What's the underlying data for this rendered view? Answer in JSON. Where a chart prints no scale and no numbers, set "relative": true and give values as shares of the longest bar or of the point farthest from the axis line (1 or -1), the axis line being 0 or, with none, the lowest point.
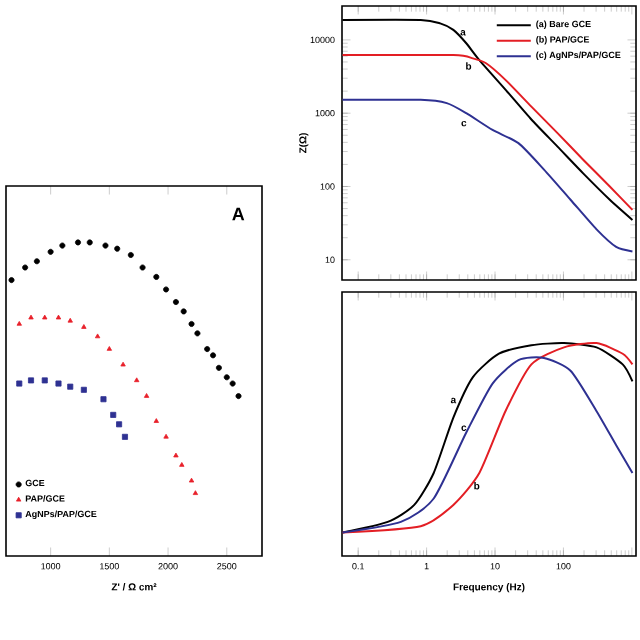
{
  "chart_data": [
    {
      "type": "scatter",
      "relative": true,
      "xlabel": "Z' / Ω cm²",
      "xlim": [
        620,
        2800
      ],
      "xticks": [
        1000,
        1500,
        2000,
        2500
      ],
      "legend": "bottom left",
      "annotations": [
        "A"
      ],
      "series": [
        {
          "name": "GCE",
          "color": "#000000",
          "marker": "circle",
          "x": [
            667,
            783,
            883,
            1000,
            1100,
            1233,
            1333,
            1467,
            1567,
            1683,
            1783,
            1900,
            1983,
            2067,
            2133,
            2200,
            2250,
            2333,
            2383,
            2433,
            2500,
            2550,
            2600
          ],
          "values": [
            0.88,
            0.92,
            0.94,
            0.97,
            0.99,
            1.0,
            1.0,
            0.99,
            0.98,
            0.96,
            0.92,
            0.89,
            0.85,
            0.81,
            0.78,
            0.74,
            0.71,
            0.66,
            0.64,
            0.6,
            0.57,
            0.55,
            0.51
          ]
        },
        {
          "name": "PAP/GCE",
          "color": "#e8202a",
          "marker": "triangle",
          "x": [
            733,
            833,
            950,
            1067,
            1167,
            1283,
            1400,
            1500,
            1617,
            1733,
            1817,
            1900,
            1983,
            2067,
            2117,
            2200,
            2233
          ],
          "values": [
            0.74,
            0.76,
            0.76,
            0.76,
            0.75,
            0.73,
            0.7,
            0.66,
            0.61,
            0.56,
            0.51,
            0.43,
            0.38,
            0.32,
            0.29,
            0.24,
            0.2
          ]
        },
        {
          "name": "AgNPs/PAP/GCE",
          "color": "#2e3192",
          "marker": "square",
          "x": [
            733,
            833,
            950,
            1067,
            1167,
            1283,
            1450,
            1533,
            1583,
            1633
          ],
          "values": [
            0.55,
            0.56,
            0.56,
            0.55,
            0.54,
            0.53,
            0.5,
            0.45,
            0.42,
            0.38
          ]
        }
      ]
    },
    {
      "type": "line",
      "ylabel": "Z(Ω)",
      "log": "xy",
      "xlim": [
        0.058,
        1150
      ],
      "ylim": [
        5.3,
        29000
      ],
      "xticks": [
        0.1,
        1,
        10,
        100,
        {
          "value": 1000,
          "label": null
        }
      ],
      "yticks": [
        10,
        100,
        1000,
        10000
      ],
      "tick_labels": "y",
      "legend": "top right",
      "annotations": [
        {
          "text": "a",
          "x": 3.4,
          "y": 12500
        },
        {
          "text": "b",
          "x": 4.1,
          "y": 4400
        },
        {
          "text": "c",
          "x": 3.5,
          "y": 720
        }
      ],
      "series": [
        {
          "name": "(a) Bare GCE",
          "color": "#000000",
          "x": [
            0.059,
            0.82,
            1.58,
            2.46,
            3.8,
            5.9,
            14.2,
            34,
            82,
            196,
            476,
            1020
          ],
          "values": [
            18700,
            18700,
            16800,
            13700,
            9000,
            5300,
            2100,
            820,
            350,
            150,
            66,
            35
          ]
        },
        {
          "name": "(b) PAP/GCE",
          "color": "#e31e24",
          "x": [
            0.059,
            2.46,
            4.75,
            7.4,
            14.2,
            34,
            82,
            196,
            476,
            1020
          ],
          "values": [
            6200,
            6200,
            5600,
            4800,
            2850,
            1230,
            535,
            230,
            100,
            48
          ]
        },
        {
          "name": "(c) AgNPs/PAP/GCE",
          "color": "#2e3192",
          "x": [
            0.059,
            0.82,
            1.97,
            3.8,
            9.2,
            22,
            52,
            127,
            305,
            590,
            1020
          ],
          "values": [
            1520,
            1520,
            1370,
            1000,
            590,
            390,
            170,
            66,
            26,
            15,
            13
          ]
        }
      ]
    },
    {
      "type": "line",
      "relative": true,
      "xlabel": "Frequency (Hz)",
      "log": "x",
      "xlim": [
        0.058,
        1150
      ],
      "xticks": [
        0.1,
        1,
        10,
        100,
        {
          "value": 1000,
          "label": null
        }
      ],
      "annotations": [
        {
          "text": "a",
          "x": 2.46,
          "y": 0.73
        },
        {
          "text": "c",
          "x": 3.5,
          "y": 0.6
        },
        {
          "text": "b",
          "x": 5.4,
          "y": 0.33
        }
      ],
      "series": [
        {
          "color": "#000000",
          "x": [
            0.059,
            0.27,
            0.66,
            1.27,
            2.46,
            4.75,
            11.4,
            34,
            102,
            305,
            735,
            1020
          ],
          "values": [
            0.11,
            0.16,
            0.24,
            0.39,
            0.65,
            0.84,
            0.95,
            0.99,
            1.0,
            0.98,
            0.9,
            0.82
          ]
        },
        {
          "color": "#e31e24",
          "x": [
            0.059,
            0.82,
            2.46,
            5.9,
            14.2,
            34,
            102,
            305,
            735,
            1020
          ],
          "values": [
            0.11,
            0.14,
            0.24,
            0.39,
            0.68,
            0.9,
            0.98,
            1.0,
            0.95,
            0.9
          ]
        },
        {
          "color": "#2e3192",
          "x": [
            0.059,
            0.42,
            1.27,
            3.8,
            9.2,
            22,
            52,
            127,
            305,
            590,
            1020
          ],
          "values": [
            0.11,
            0.16,
            0.27,
            0.58,
            0.81,
            0.92,
            0.93,
            0.87,
            0.68,
            0.52,
            0.39
          ]
        }
      ]
    }
  ]
}
